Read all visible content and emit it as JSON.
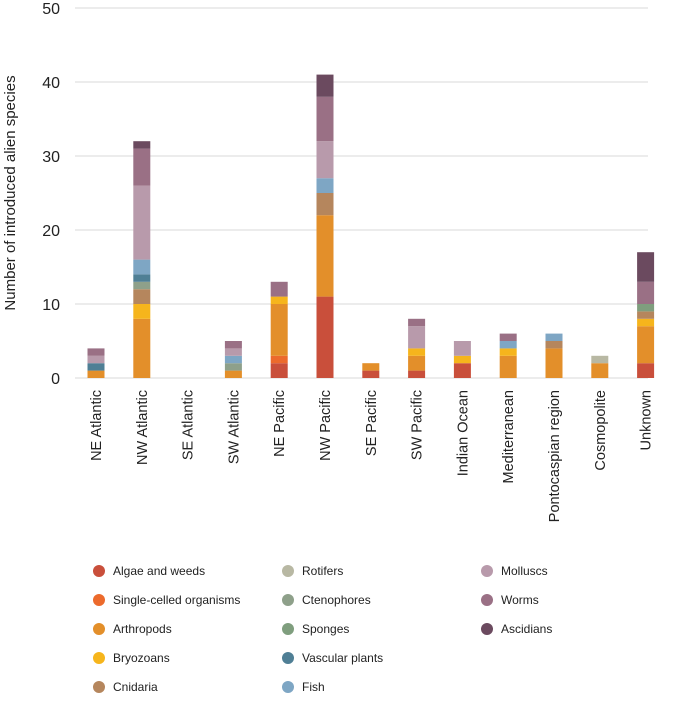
{
  "chart_data": {
    "type": "bar",
    "stacked": true,
    "ylabel": "Number of introduced alien species",
    "ylim": [
      0,
      50
    ],
    "yticks": [
      0,
      10,
      20,
      30,
      40,
      50
    ],
    "grid": true,
    "legend_position": "bottom",
    "categories": [
      "NE Atlantic",
      "NW Atlantic",
      "SE Atlantic",
      "SW Atlantic",
      "NE Pacific",
      "NW Pacific",
      "SE Pacific",
      "SW Pacific",
      "Indian Ocean",
      "Mediterranean",
      "Pontocaspian region",
      "Cosmopolite",
      "Unknown"
    ],
    "series": [
      {
        "name": "Algae and weeds",
        "color": "#c94f3b",
        "values": [
          0,
          0,
          0,
          0,
          2,
          11,
          1,
          1,
          2,
          0,
          0,
          0,
          2
        ]
      },
      {
        "name": "Single-celled organisms",
        "color": "#ec6a2c",
        "values": [
          0,
          0,
          0,
          0,
          1,
          0,
          0,
          0,
          0,
          0,
          0,
          0,
          0
        ]
      },
      {
        "name": "Arthropods",
        "color": "#e38f2a",
        "values": [
          1,
          8,
          0,
          1,
          7,
          11,
          1,
          2,
          0,
          3,
          4,
          2,
          5
        ]
      },
      {
        "name": "Bryozoans",
        "color": "#f6b51c",
        "values": [
          0,
          2,
          0,
          0,
          1,
          0,
          0,
          1,
          1,
          1,
          0,
          0,
          1
        ]
      },
      {
        "name": "Cnidaria",
        "color": "#b5865d",
        "values": [
          0,
          2,
          0,
          0,
          0,
          3,
          0,
          0,
          0,
          0,
          1,
          0,
          1
        ]
      },
      {
        "name": "Rotifers",
        "color": "#b8b8a3",
        "values": [
          0,
          0,
          0,
          0,
          0,
          0,
          0,
          0,
          0,
          0,
          0,
          1,
          0
        ]
      },
      {
        "name": "Ctenophores",
        "color": "#8ea08a",
        "values": [
          0,
          1,
          0,
          1,
          0,
          0,
          0,
          0,
          0,
          0,
          0,
          0,
          0
        ]
      },
      {
        "name": "Sponges",
        "color": "#7f9e7e",
        "values": [
          0,
          0,
          0,
          0,
          0,
          0,
          0,
          0,
          0,
          0,
          0,
          0,
          1
        ]
      },
      {
        "name": "Vascular plants",
        "color": "#4f7f95",
        "values": [
          1,
          1,
          0,
          0,
          0,
          0,
          0,
          0,
          0,
          0,
          0,
          0,
          0
        ]
      },
      {
        "name": "Fish",
        "color": "#7ea6c4",
        "values": [
          0,
          2,
          0,
          1,
          0,
          2,
          0,
          0,
          0,
          1,
          1,
          0,
          0
        ]
      },
      {
        "name": "Molluscs",
        "color": "#b89aab",
        "values": [
          1,
          10,
          0,
          1,
          0,
          5,
          0,
          3,
          2,
          0,
          0,
          0,
          0
        ]
      },
      {
        "name": "Worms",
        "color": "#9a7085",
        "values": [
          1,
          5,
          0,
          1,
          2,
          6,
          0,
          1,
          0,
          1,
          0,
          0,
          3
        ]
      },
      {
        "name": "Ascidians",
        "color": "#6b4a5f",
        "values": [
          0,
          1,
          0,
          0,
          0,
          3,
          0,
          0,
          0,
          0,
          0,
          0,
          4
        ]
      }
    ]
  }
}
